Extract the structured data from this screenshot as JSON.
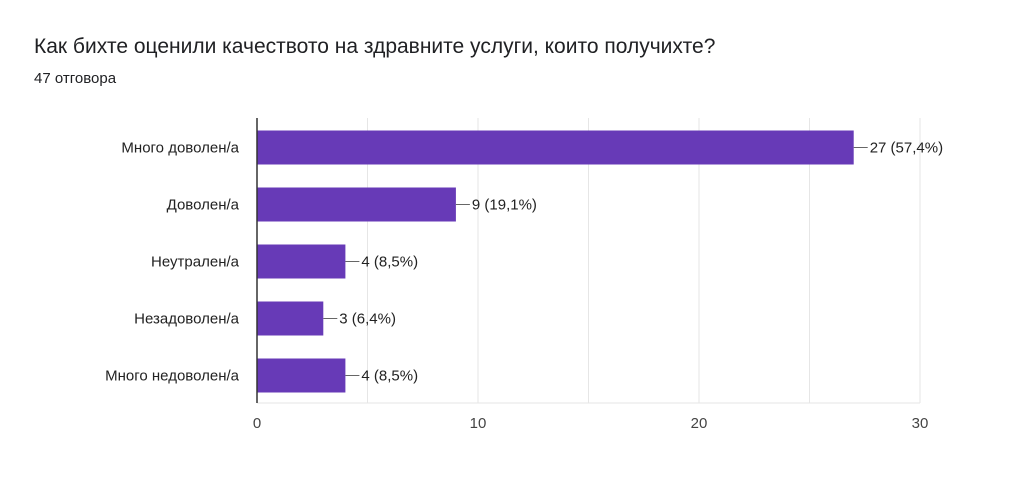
{
  "header": {
    "title": "Как бихте оценили качеството на здравните услуги, които получихте?",
    "subtitle": "47 отговора"
  },
  "colors": {
    "bar": "#673ab7",
    "grid": "#e6e6e6",
    "axis": "#333333",
    "leader": "#666666"
  },
  "chart_data": {
    "type": "bar",
    "orientation": "horizontal",
    "categories": [
      "Много доволен/а",
      "Доволен/а",
      "Неутрален/а",
      "Незадоволен/а",
      "Много недоволен/а"
    ],
    "values": [
      27,
      9,
      4,
      3,
      4
    ],
    "data_labels": [
      "27 (57,4%)",
      "9 (19,1%)",
      "4 (8,5%)",
      "3 (6,4%)",
      "4 (8,5%)"
    ],
    "xlim": [
      0,
      30
    ],
    "xticks": [
      0,
      10,
      20,
      30
    ],
    "grid": true,
    "title": "Как бихте оценили качеството на здравните услуги, които получихте?",
    "subtitle": "47 отговора"
  }
}
